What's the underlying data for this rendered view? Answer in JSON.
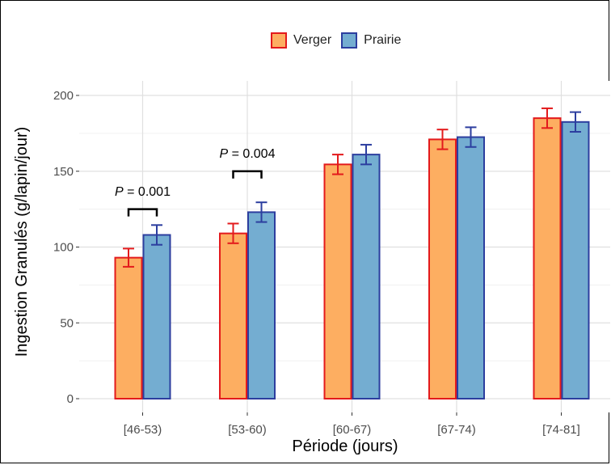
{
  "chart_data": {
    "type": "bar",
    "xlabel": "Période (jours)",
    "ylabel": "Ingestion Granulés (g/lapin/jour)",
    "categories": [
      "[46-53)",
      "[53-60)",
      "[60-67)",
      "[67-74)",
      "[74-81]"
    ],
    "ylim": [
      0,
      200
    ],
    "yticks": [
      0,
      50,
      100,
      150,
      200
    ],
    "grid": true,
    "legend": "top",
    "series": [
      {
        "name": "Verger",
        "fill": "#FDAE61",
        "stroke": "#E31A1C",
        "values": [
          93,
          109,
          154.5,
          171,
          185
        ],
        "errors": [
          6,
          6.5,
          6.5,
          6.5,
          6.5
        ]
      },
      {
        "name": "Prairie",
        "fill": "#74ADD1",
        "stroke": "#2C3E9F",
        "values": [
          108,
          123,
          161,
          172.5,
          182.5
        ],
        "errors": [
          6.5,
          6.5,
          6.5,
          6.5,
          6.5
        ]
      }
    ],
    "annotations": [
      {
        "category": "[46-53)",
        "prefix": "P",
        "text": " = 0.001",
        "bracket_value": 125,
        "label_value": 134
      },
      {
        "category": "[53-60)",
        "prefix": "P",
        "text": " = 0.004",
        "bracket_value": 150,
        "label_value": 159
      }
    ]
  }
}
